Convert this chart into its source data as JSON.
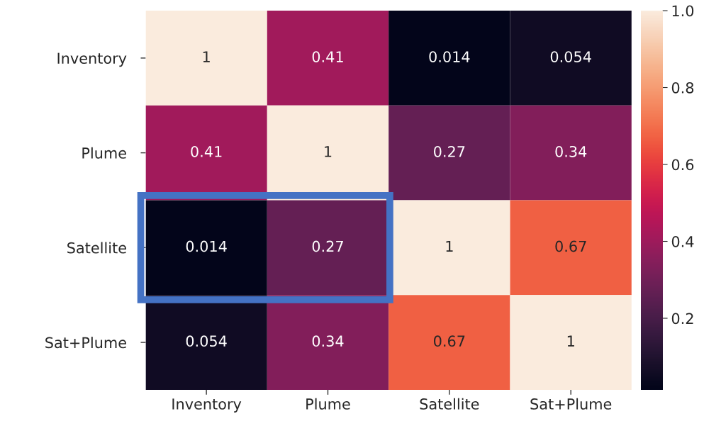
{
  "chart_data": {
    "type": "heatmap",
    "categories": [
      "Inventory",
      "Plume",
      "Satellite",
      "Sat+Plume"
    ],
    "y_categories": [
      "Inventory",
      "Plume",
      "Satellite",
      "Sat+Plume"
    ],
    "cells": [
      [
        1,
        0.41,
        0.014,
        0.054
      ],
      [
        0.41,
        1,
        0.27,
        0.34
      ],
      [
        0.014,
        0.27,
        1,
        0.67
      ],
      [
        0.054,
        0.34,
        0.67,
        1
      ]
    ],
    "data_labels": true,
    "clim": [
      0.014,
      1.0
    ],
    "cticks": [
      0.2,
      0.4,
      0.6,
      0.8,
      {
        "value": 1.0,
        "label": "1.0"
      }
    ]
  }
}
